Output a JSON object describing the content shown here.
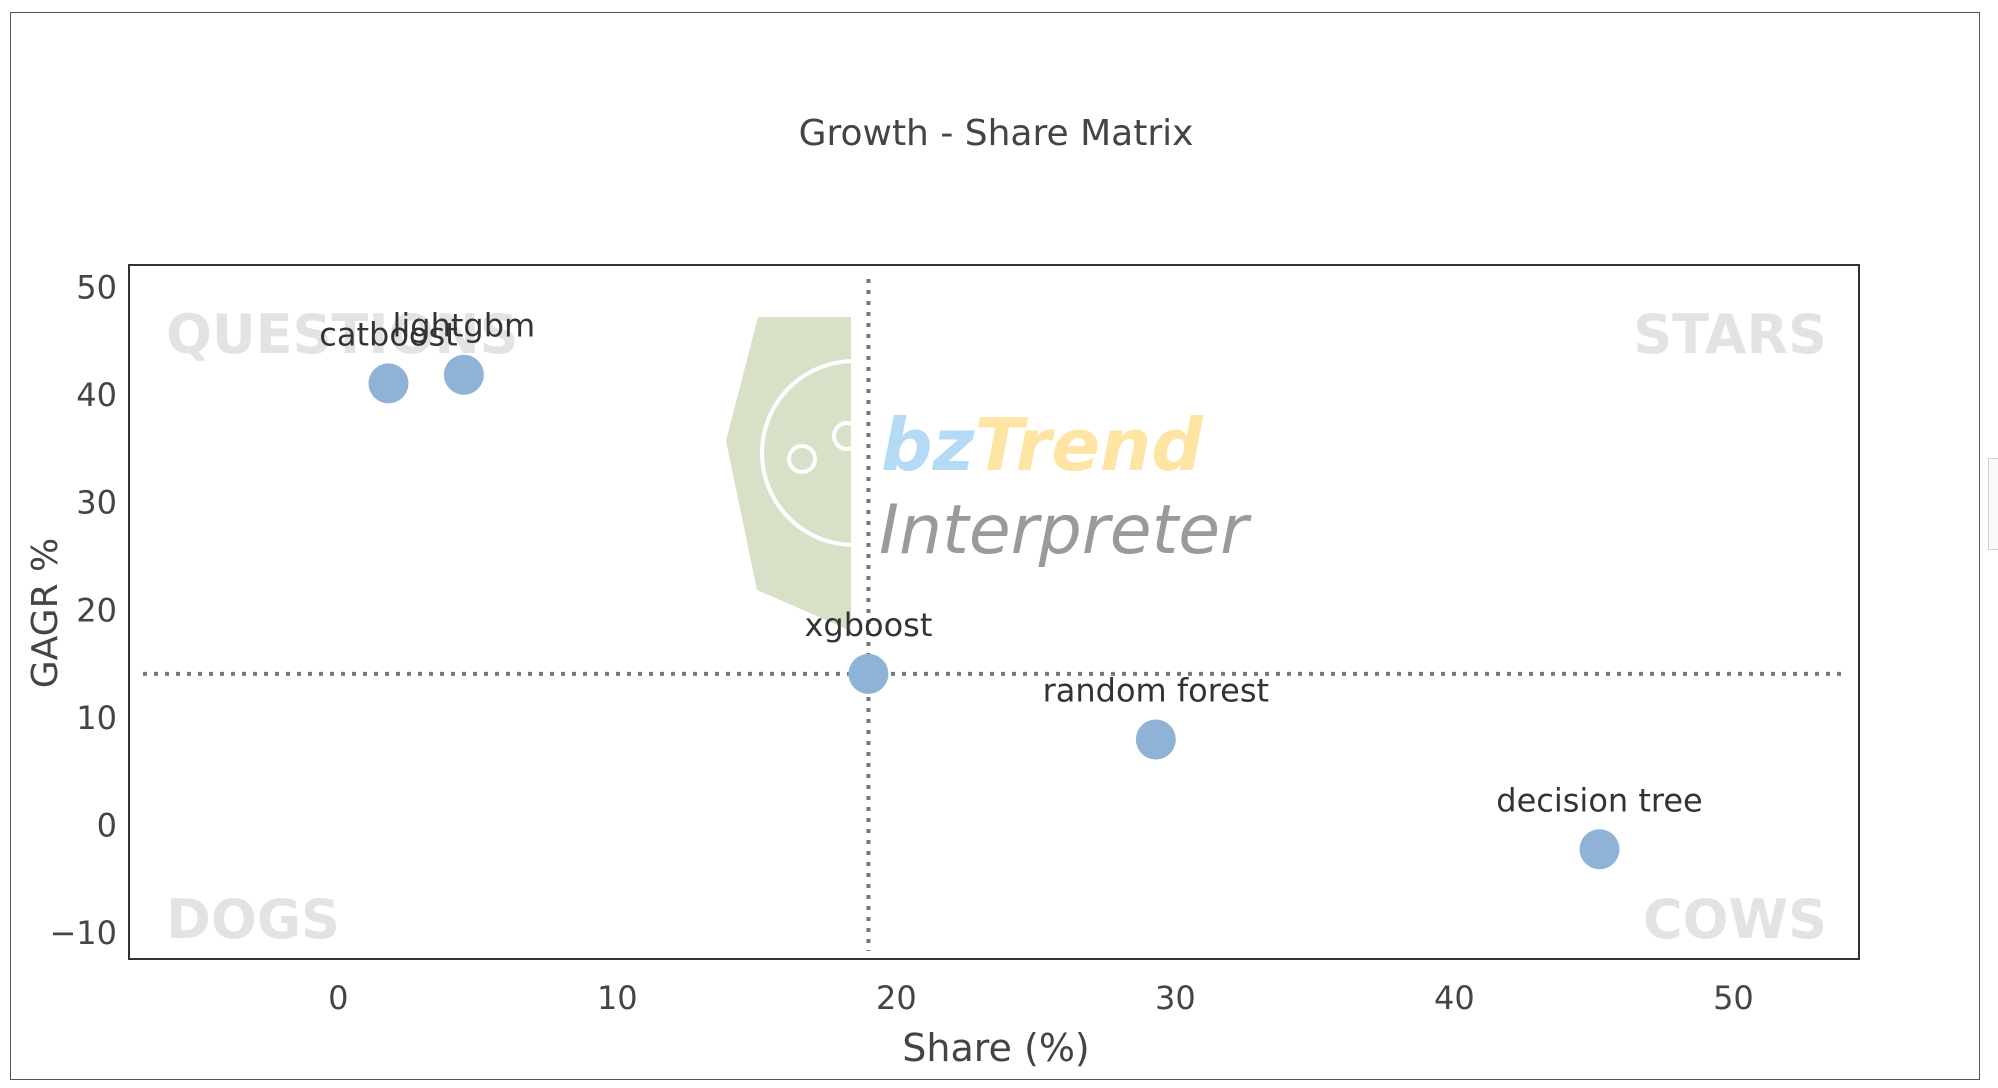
{
  "chart_data": {
    "type": "scatter",
    "title": "Growth - Share Matrix",
    "xlabel": "Share (%)",
    "ylabel": "GAGR %",
    "xlim": [
      -7.5,
      54.5
    ],
    "ylim": [
      -12.5,
      52
    ],
    "xticks": [
      0,
      10,
      20,
      30,
      40,
      50
    ],
    "yticks": [
      -10,
      0,
      10,
      20,
      30,
      40,
      50
    ],
    "grid": false,
    "threshold_x": 19,
    "threshold_y": 14,
    "quadrant_labels": {
      "top_left": "QUESTIONS",
      "top_right": "STARS",
      "bottom_left": "DOGS",
      "bottom_right": "COWS"
    },
    "points": [
      {
        "label": "catboost",
        "x": 1.8,
        "y": 41
      },
      {
        "label": "lightgbm",
        "x": 4.5,
        "y": 41.8
      },
      {
        "label": "xgboost",
        "x": 19,
        "y": 14
      },
      {
        "label": "random forest",
        "x": 29.3,
        "y": 7.9
      },
      {
        "label": "decision tree",
        "x": 45.2,
        "y": -2.3
      }
    ],
    "marker_color": "#8fb3d6",
    "guide_color": "#777777"
  },
  "watermark": {
    "brand_part1": "bz",
    "brand_part2": "Trend",
    "subtitle": "Interpreter",
    "color_bz": "#b5daf5",
    "color_trend": "#ffe5a3",
    "color_subtitle": "#9a9a9a",
    "logo_fill": "#d9e0c8"
  }
}
